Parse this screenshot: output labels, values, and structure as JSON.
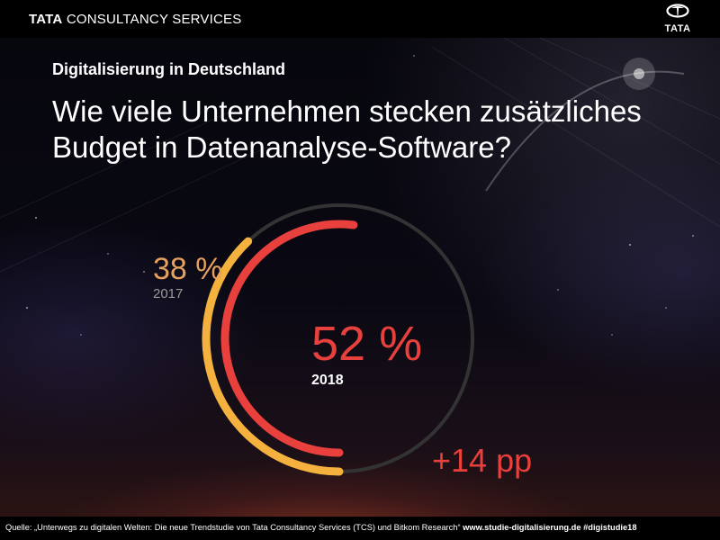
{
  "header": {
    "brand_strong": "TATA",
    "brand_rest": "CONSULTANCY SERVICES",
    "logo_word": "TATA"
  },
  "subtitle": "Digitalisierung in Deutschland",
  "title_line1": "Wie viele Unternehmen stecken zusätzliches",
  "title_line2": "Budget in Datenanalyse-Software?",
  "footer": {
    "source": "Quelle: „Unterwegs zu digitalen Welten: Die neue Trendstudie von Tata Consultancy Services (TCS) und Bitkom Research“",
    "link": "www.studie-digitalisierung.de #digistudie18"
  },
  "colors": {
    "value_2018": "#e8403c",
    "value_2017": "#f5b13d",
    "label_2017": "#e7a15f",
    "track": "#3a3a3a"
  },
  "chart_data": {
    "type": "radial-bar",
    "title": "Wie viele Unternehmen stecken zusätzliches Budget in Datenanalyse-Software?",
    "unit": "%",
    "series": [
      {
        "name": "2017",
        "value": 38,
        "label": "38 %",
        "year_label": "2017"
      },
      {
        "name": "2018",
        "value": 52,
        "label": "52 %",
        "year_label": "2018"
      }
    ],
    "difference_label": "+14 pp",
    "ylim": [
      0,
      100
    ]
  }
}
